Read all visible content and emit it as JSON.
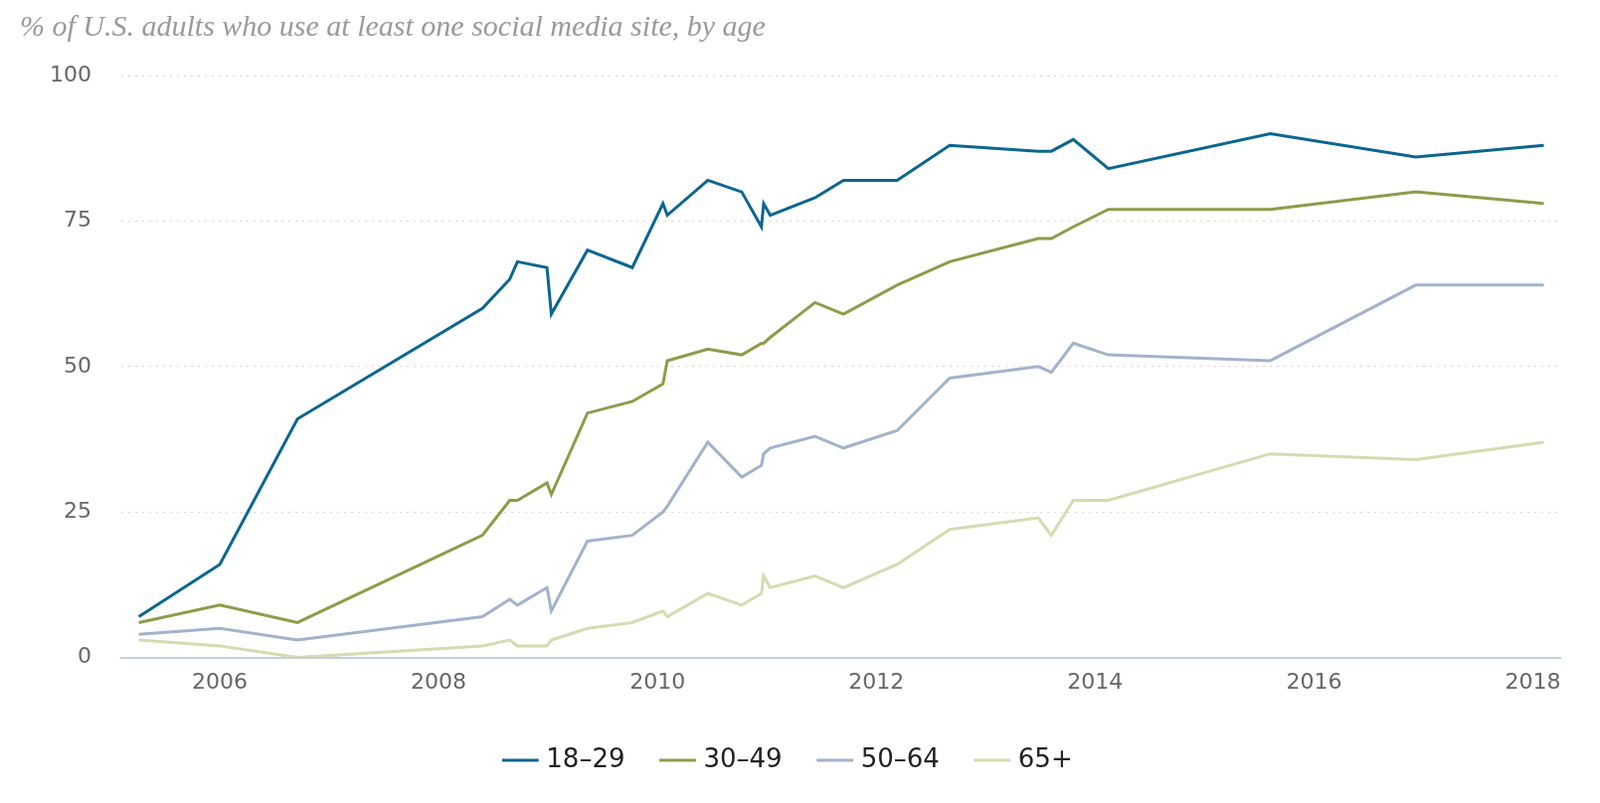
{
  "chart_data": {
    "type": "line",
    "title": "% of U.S. adults who use at least one social media site, by age",
    "x": [
      2005.26,
      2006,
      2006.71,
      2008.4,
      2008.65,
      2008.72,
      2008.99,
      2009.03,
      2009.36,
      2009.77,
      2010.05,
      2010.09,
      2010.46,
      2010.77,
      2010.95,
      2010.97,
      2011.03,
      2011.44,
      2011.7,
      2012.19,
      2012.67,
      2013.48,
      2013.6,
      2013.8,
      2014.12,
      2015.6,
      2016.93,
      2018.1
    ],
    "series": [
      {
        "name": "18–29",
        "color": "#0b6690",
        "values": [
          7,
          16,
          41,
          60,
          65,
          68,
          67,
          59,
          70,
          67,
          78,
          76,
          82,
          80,
          74,
          78,
          76,
          79,
          82,
          82,
          88,
          87,
          87,
          89,
          84,
          90,
          86,
          88
        ]
      },
      {
        "name": "30–49",
        "color": "#8c9c4a",
        "values": [
          6,
          9,
          6,
          21,
          27,
          27,
          30,
          28,
          42,
          44,
          47,
          51,
          53,
          52,
          54,
          54,
          55,
          61,
          59,
          64,
          68,
          72,
          72,
          74,
          77,
          77,
          80,
          78
        ]
      },
      {
        "name": "50–64",
        "color": "#a3b2cc",
        "values": [
          4,
          5,
          3,
          7,
          10,
          9,
          12,
          8,
          20,
          21,
          25,
          26,
          37,
          31,
          33,
          35,
          36,
          38,
          36,
          39,
          48,
          50,
          49,
          54,
          52,
          51,
          64,
          64
        ]
      },
      {
        "name": "65+",
        "color": "#d3dcb0",
        "values": [
          3,
          2,
          0,
          2,
          3,
          2,
          2,
          3,
          5,
          6,
          8,
          7,
          11,
          9,
          11,
          14,
          12,
          14,
          12,
          16,
          22,
          24,
          21,
          27,
          27,
          35,
          34,
          37
        ]
      }
    ],
    "xlim": [
      2005.1,
      2018.25
    ],
    "xticks": [
      2006,
      2008,
      2010,
      2012,
      2014,
      2016,
      2018
    ],
    "ylim": [
      0,
      100
    ],
    "yticks": [
      0,
      25,
      50,
      75,
      100
    ],
    "grid": true,
    "legend": "bottom"
  }
}
